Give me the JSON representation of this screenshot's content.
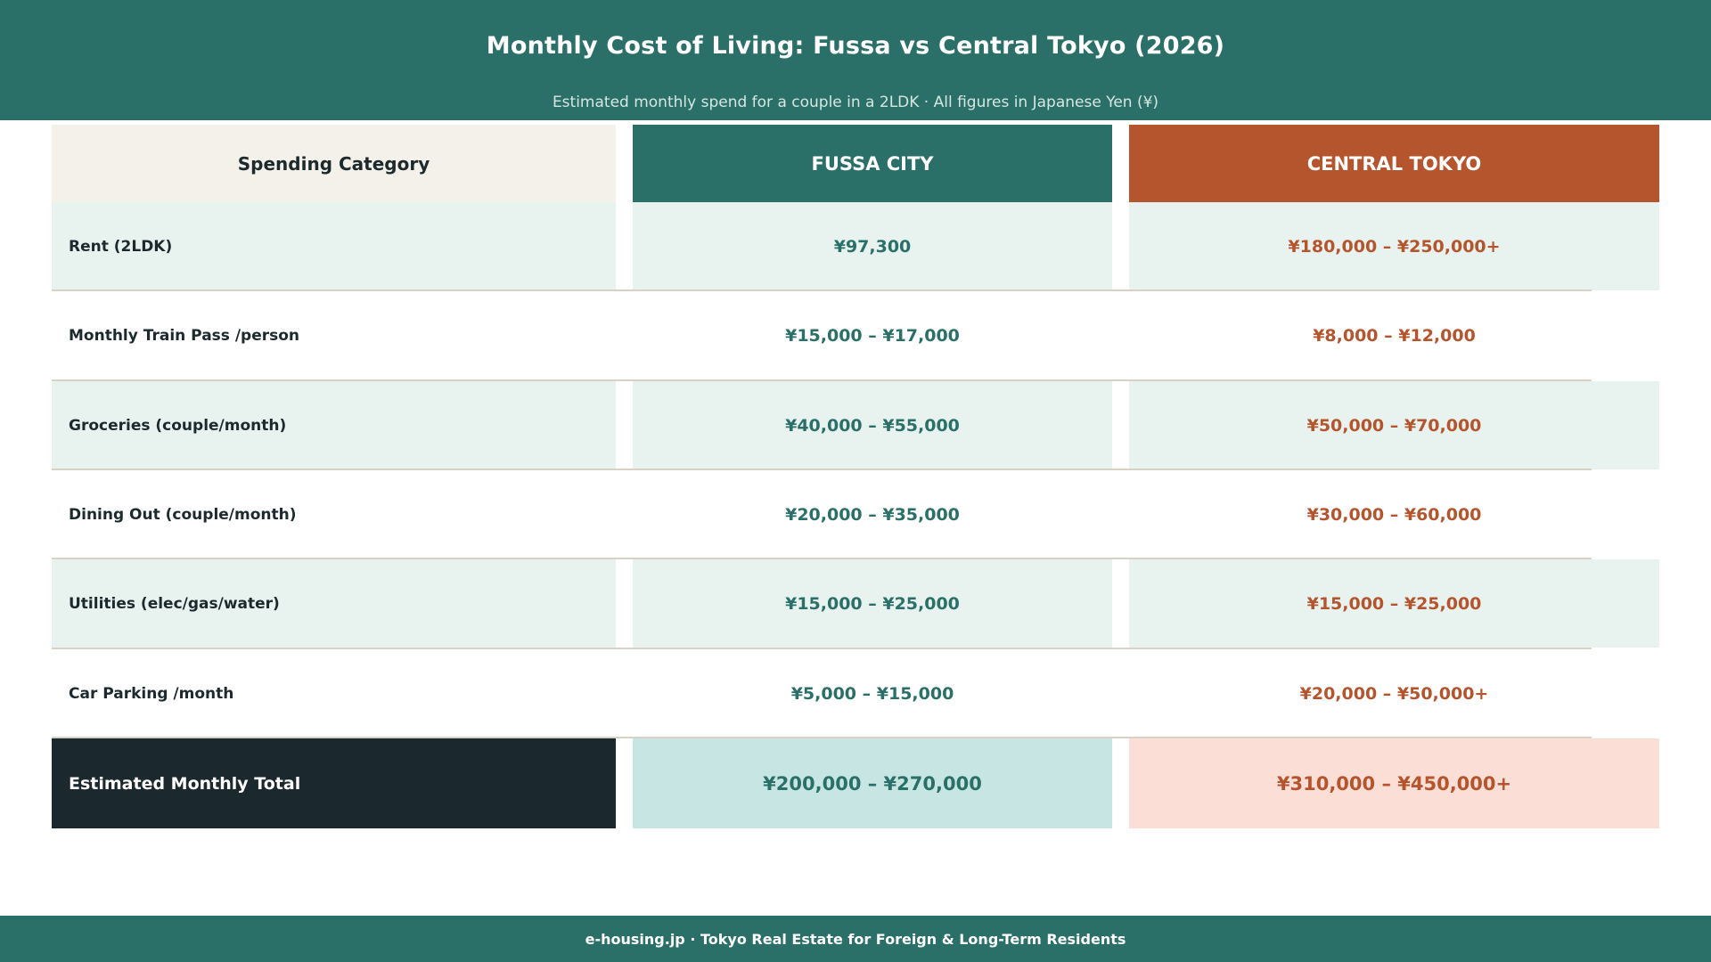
{
  "header": {
    "title": "Monthly Cost of Living: Fussa vs Central Tokyo (2026)",
    "subtitle": "Estimated monthly spend for a couple in a 2LDK  ·  All figures in Japanese Yen (¥)"
  },
  "chart_data": {
    "type": "table",
    "columns": [
      "Spending Category",
      "FUSSA CITY",
      "CENTRAL TOKYO"
    ],
    "rows": [
      {
        "category": "Rent  (2LDK)",
        "fussa": "¥97,300",
        "tokyo": "¥180,000 – ¥250,000+"
      },
      {
        "category": "Monthly Train Pass  /person",
        "fussa": "¥15,000 – ¥17,000",
        "tokyo": "¥8,000 – ¥12,000"
      },
      {
        "category": "Groceries  (couple/month)",
        "fussa": "¥40,000 – ¥55,000",
        "tokyo": "¥50,000 – ¥70,000"
      },
      {
        "category": "Dining Out  (couple/month)",
        "fussa": "¥20,000 – ¥35,000",
        "tokyo": "¥30,000 – ¥60,000"
      },
      {
        "category": "Utilities  (elec/gas/water)",
        "fussa": "¥15,000 – ¥25,000",
        "tokyo": "¥15,000 – ¥25,000"
      },
      {
        "category": "Car Parking  /month",
        "fussa": "¥5,000 – ¥15,000",
        "tokyo": "¥20,000 – ¥50,000+"
      }
    ],
    "total": {
      "category": "Estimated Monthly Total",
      "fussa": "¥200,000 – ¥270,000",
      "tokyo": "¥310,000 – ¥450,000+"
    }
  },
  "footer": {
    "text": "e-housing.jp  ·  Tokyo Real Estate for Foreign & Long-Term Residents"
  },
  "colors": {
    "teal": "#2b7068",
    "rust": "#b4552d",
    "dark": "#1b292e",
    "shade": "#e8f3f0"
  }
}
